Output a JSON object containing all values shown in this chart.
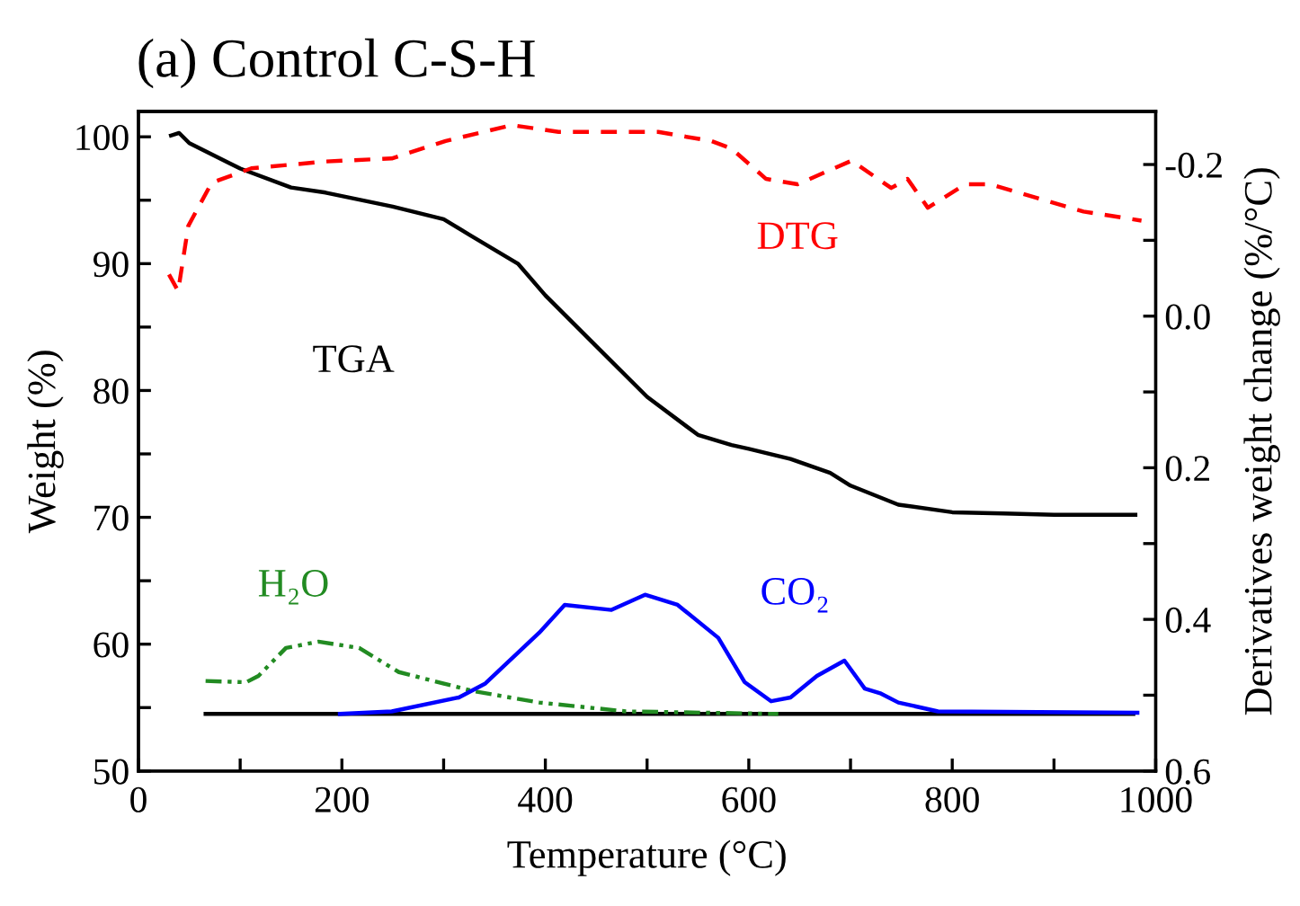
{
  "chart_data": {
    "type": "line",
    "title": "(a) Control C-S-H",
    "xlabel": "Temperature (°C)",
    "ylabel": "Weight (%)",
    "y2label": "Derivatives weight change (%/°C)",
    "xlim": [
      0,
      1000
    ],
    "xticks": [
      0,
      {
        "value": 100,
        "label": null
      },
      200,
      {
        "value": 300,
        "label": null
      },
      400,
      {
        "value": 500,
        "label": null
      },
      600,
      {
        "value": 700,
        "label": null
      },
      800,
      {
        "value": 900,
        "label": null
      },
      1000
    ],
    "ylim": [
      50,
      102
    ],
    "yticks": [
      50,
      {
        "value": 55,
        "label": null
      },
      60,
      {
        "value": 65,
        "label": null
      },
      70,
      {
        "value": 75,
        "label": null
      },
      80,
      {
        "value": 85,
        "label": null
      },
      90,
      {
        "value": 95,
        "label": null
      },
      100
    ],
    "y2lim": [
      0.6,
      -0.27
    ],
    "y2ticks": [
      {
        "value": 0.6,
        "label": "0.6"
      },
      {
        "value": 0.5,
        "label": null
      },
      {
        "value": 0.4,
        "label": "0.4"
      },
      {
        "value": 0.3,
        "label": null
      },
      {
        "value": 0.2,
        "label": "0.2"
      },
      {
        "value": 0.1,
        "label": null
      },
      {
        "value": 0.0,
        "label": "0.0"
      },
      {
        "value": -0.1,
        "label": null
      },
      {
        "value": -0.2,
        "label": "-0.2"
      }
    ],
    "grid": false,
    "legend": false,
    "series": [
      {
        "name": "TGA",
        "color": "#000000",
        "line_style": "solid",
        "x": [
          32,
          40,
          50,
          100,
          150,
          184,
          250,
          300,
          327,
          373,
          400,
          450,
          500,
          550,
          583,
          600,
          641,
          680,
          700,
          747,
          800,
          850,
          900,
          980
        ],
        "values": [
          100.1,
          100.3,
          99.5,
          97.5,
          96,
          95.6,
          94.5,
          93.5,
          92.2,
          90,
          87.5,
          83.5,
          79.5,
          76.5,
          75.7,
          75.4,
          74.6,
          73.5,
          72.5,
          71,
          70.4,
          70.3,
          70.2,
          70.2
        ]
      },
      {
        "name": "DTG",
        "color": "#ff0000",
        "line_style": "dashed",
        "axis": "y2",
        "x": [
          30,
          39,
          49,
          72,
          111,
          184,
          249,
          302,
          367,
          413,
          511,
          563,
          583,
          617,
          648,
          701,
          740,
          756,
          776,
          813,
          837,
          929,
          986
        ],
        "values": [
          -0.055,
          -0.033,
          -0.119,
          -0.176,
          -0.195,
          -0.204,
          -0.208,
          -0.231,
          -0.252,
          -0.243,
          -0.243,
          -0.231,
          -0.221,
          -0.181,
          -0.174,
          -0.205,
          -0.169,
          -0.181,
          -0.143,
          -0.174,
          -0.174,
          -0.138,
          -0.126
        ]
      },
      {
        "name": "H₂O",
        "color": "#228b22",
        "line_style": "dashdot",
        "x": [
          66,
          106,
          118,
          145,
          177,
          217,
          256,
          329,
          394,
          479,
          629
        ],
        "values": [
          57.1,
          57.0,
          57.5,
          59.7,
          60.2,
          59.7,
          57.8,
          56.3,
          55.4,
          54.7,
          54.5
        ]
      },
      {
        "name": "CO₂",
        "color": "#0000ff",
        "line_style": "solid",
        "x": [
          198,
          249,
          315,
          341,
          394,
          419,
          465,
          498,
          530,
          570,
          596,
          622,
          641,
          667,
          694,
          714,
          730,
          747,
          786,
          982
        ],
        "values": [
          54.5,
          54.7,
          55.8,
          56.9,
          60.9,
          63.1,
          62.7,
          63.9,
          63.1,
          60.5,
          57.0,
          55.5,
          55.8,
          57.5,
          58.7,
          56.5,
          56.1,
          55.4,
          54.7,
          54.6
        ]
      },
      {
        "color": "#000000",
        "line_style": "solid",
        "x": [
          66,
          978
        ],
        "values": [
          54.5,
          54.5
        ]
      }
    ]
  }
}
